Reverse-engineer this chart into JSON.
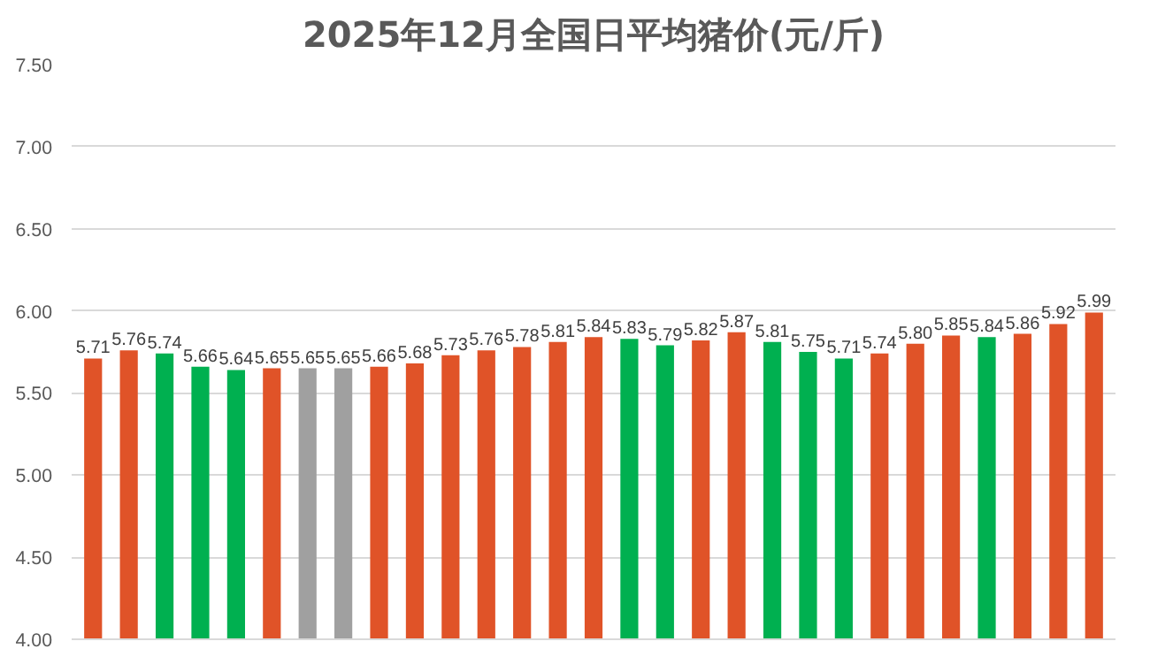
{
  "chart_data": {
    "type": "bar",
    "title": "2025年12月全国日平均猪价(元/斤)",
    "categories": [
      null,
      null,
      null,
      null,
      null,
      null,
      null,
      null,
      null,
      null,
      null,
      null,
      null,
      null,
      null,
      null,
      null,
      null,
      null,
      null,
      null,
      null,
      null,
      null,
      null,
      null,
      null,
      null,
      null
    ],
    "values": [
      5.71,
      5.76,
      5.74,
      5.66,
      5.64,
      5.65,
      5.65,
      5.65,
      5.66,
      5.68,
      5.73,
      5.76,
      5.78,
      5.81,
      5.84,
      5.83,
      5.79,
      5.82,
      5.87,
      5.81,
      5.75,
      5.71,
      5.74,
      5.8,
      5.85,
      5.84,
      5.86,
      5.92,
      5.99
    ],
    "colors": [
      "#e05328",
      "#e05328",
      "#00b050",
      "#00b050",
      "#00b050",
      "#e05328",
      "#a0a0a0",
      "#a0a0a0",
      "#e05328",
      "#e05328",
      "#e05328",
      "#e05328",
      "#e05328",
      "#e05328",
      "#e05328",
      "#00b050",
      "#00b050",
      "#e05328",
      "#e05328",
      "#00b050",
      "#00b050",
      "#00b050",
      "#e05328",
      "#e05328",
      "#e05328",
      "#00b050",
      "#e05328",
      "#e05328",
      "#e05328"
    ],
    "ylim": [
      4.0,
      7.5
    ],
    "yticks": [
      {
        "value": 4.0,
        "label": "4.00"
      },
      {
        "value": 4.5,
        "label": "4.50"
      },
      {
        "value": 5.0,
        "label": "5.00"
      },
      {
        "value": 5.5,
        "label": "5.50"
      },
      {
        "value": 6.0,
        "label": "6.00"
      },
      {
        "value": 6.5,
        "label": "6.50"
      },
      {
        "value": 7.0,
        "label": "7.00"
      },
      {
        "value": 7.5,
        "label": "7.50"
      }
    ],
    "value_labels": [
      "5.71",
      "5.76",
      "5.74",
      "5.66",
      "5.64",
      "5.65",
      "5.65",
      "5.65",
      "5.66",
      "5.68",
      "5.73",
      "5.76",
      "5.78",
      "5.81",
      "5.84",
      "5.83",
      "5.79",
      "5.82",
      "5.87",
      "5.81",
      "5.75",
      "5.71",
      "5.74",
      "5.80",
      "5.85",
      "5.84",
      "5.86",
      "5.92",
      "5.99"
    ],
    "grid": "y"
  }
}
